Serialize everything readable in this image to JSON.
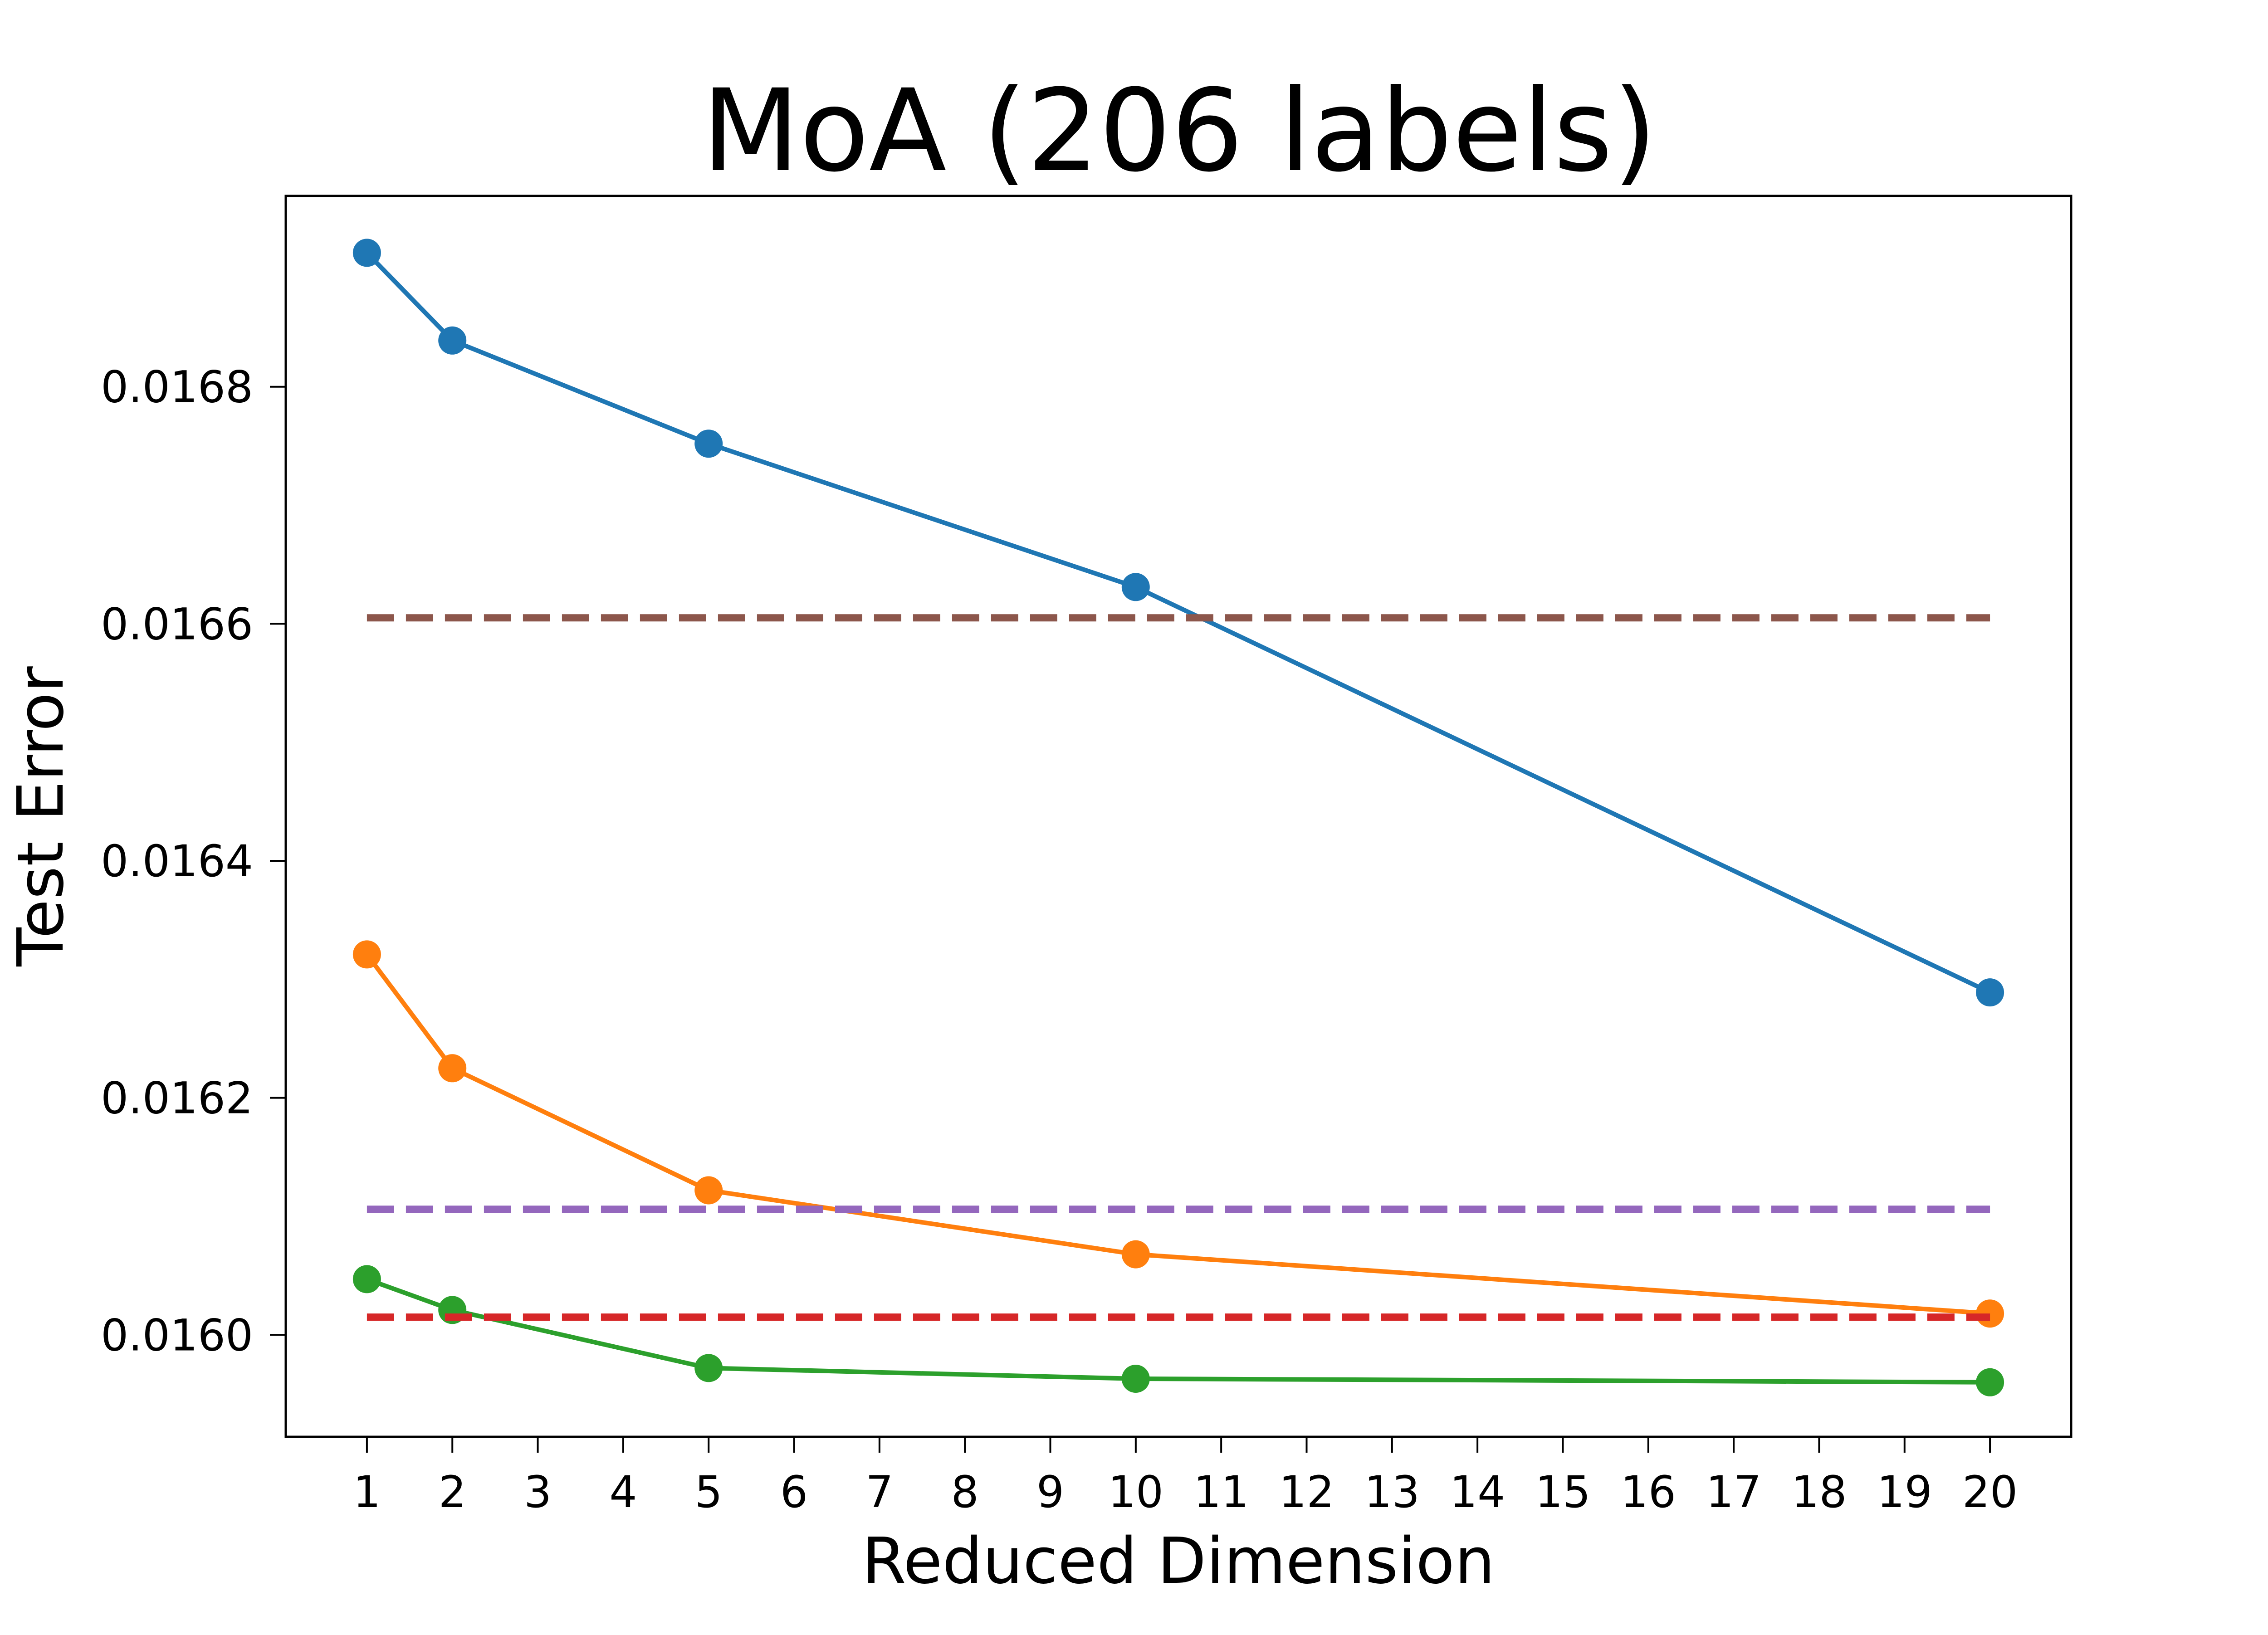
{
  "chart_data": {
    "type": "line",
    "title": "MoA (206 labels)",
    "xlabel": "Reduced Dimension",
    "ylabel": "Test Error",
    "xlim": [
      0.05,
      20.95
    ],
    "ylim": [
      0.015914,
      0.016961
    ],
    "xticks": [
      1,
      2,
      3,
      4,
      5,
      6,
      7,
      8,
      9,
      10,
      11,
      12,
      13,
      14,
      15,
      16,
      17,
      18,
      19,
      20
    ],
    "xtick_labels": [
      "1",
      "2",
      "3",
      "4",
      "5",
      "6",
      "7",
      "8",
      "9",
      "10",
      "11",
      "12",
      "13",
      "14",
      "15",
      "16",
      "17",
      "18",
      "19",
      "20"
    ],
    "yticks": [
      0.016,
      0.0162,
      0.0164,
      0.0166,
      0.0168
    ],
    "ytick_labels": [
      "0.0160",
      "0.0162",
      "0.0164",
      "0.0166",
      "0.0168"
    ],
    "grid": false,
    "series": [
      {
        "color": "#1f77b4",
        "style": "solid",
        "marker": "circle",
        "x": [
          1,
          2,
          5,
          10,
          20
        ],
        "y": [
          0.016913,
          0.016839,
          0.016752,
          0.016631,
          0.016289
        ]
      },
      {
        "color": "#ff7f0e",
        "style": "solid",
        "marker": "circle",
        "x": [
          1,
          2,
          5,
          10,
          20
        ],
        "y": [
          0.016321,
          0.016225,
          0.016122,
          0.016068,
          0.016018
        ]
      },
      {
        "color": "#2ca02c",
        "style": "solid",
        "marker": "circle",
        "x": [
          1,
          2,
          5,
          10,
          20
        ],
        "y": [
          0.016047,
          0.016021,
          0.015972,
          0.015963,
          0.01596
        ]
      },
      {
        "color": "#8c564b",
        "style": "dashed",
        "marker": "none",
        "x": [
          1,
          20
        ],
        "y": [
          0.016605,
          0.016605
        ]
      },
      {
        "color": "#9467bd",
        "style": "dashed",
        "marker": "none",
        "x": [
          1,
          20
        ],
        "y": [
          0.016106,
          0.016106
        ]
      },
      {
        "color": "#d62728",
        "style": "dashed",
        "marker": "none",
        "x": [
          1,
          20
        ],
        "y": [
          0.016015,
          0.016015
        ]
      }
    ]
  }
}
